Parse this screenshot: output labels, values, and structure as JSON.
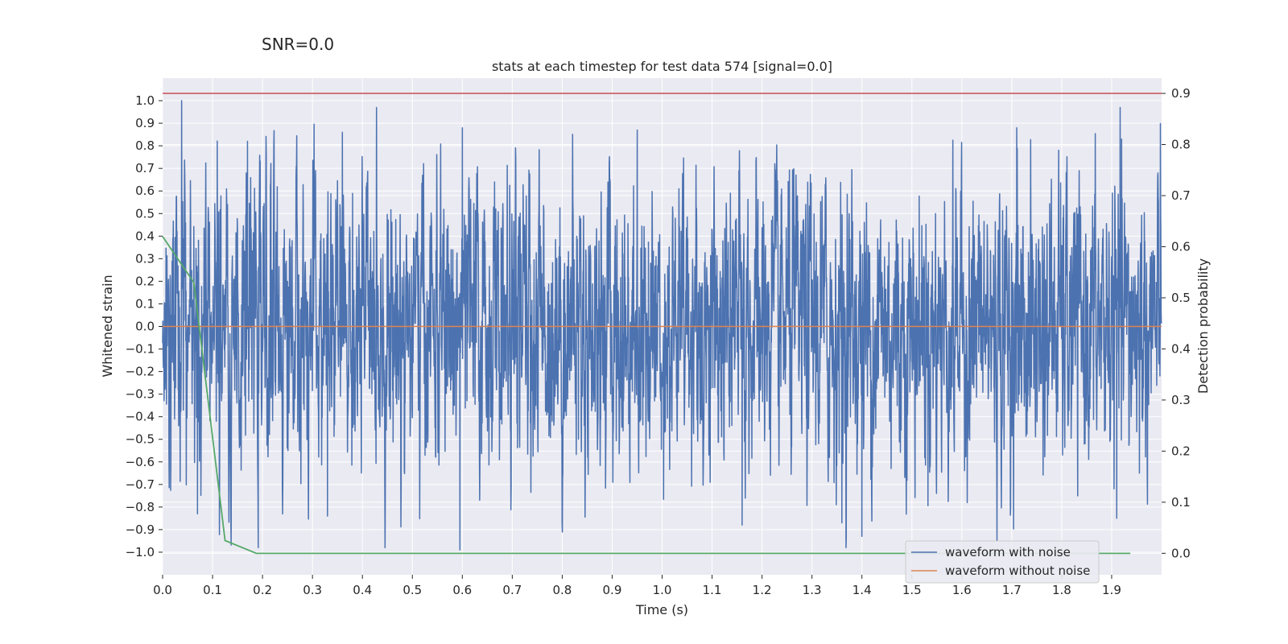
{
  "suptitle": "SNR=0.0",
  "chart_data": {
    "type": "line",
    "title": "stats at each timestep for test data 574 [signal=0.0]",
    "xlabel": "Time (s)",
    "ylabel_left": "Whitened strain",
    "ylabel_right": "Detection probability",
    "xlim": [
      0.0,
      2.0
    ],
    "ylim_left": [
      -1.1,
      1.1
    ],
    "ylim_right": [
      -0.042,
      0.93
    ],
    "x_ticks": [
      "0.0",
      "0.1",
      "0.2",
      "0.3",
      "0.4",
      "0.5",
      "0.6",
      "0.7",
      "0.8",
      "0.9",
      "1.0",
      "1.1",
      "1.2",
      "1.3",
      "1.4",
      "1.5",
      "1.6",
      "1.7",
      "1.8",
      "1.9"
    ],
    "y_ticks_left": [
      "1.0",
      "0.9",
      "0.8",
      "0.7",
      "0.6",
      "0.5",
      "0.4",
      "0.3",
      "0.2",
      "0.1",
      "0.0",
      "−0.1",
      "−0.2",
      "−0.3",
      "−0.4",
      "−0.5",
      "−0.6",
      "−0.7",
      "−0.8",
      "−0.9",
      "−1.0"
    ],
    "y_ticks_right": [
      "0.9",
      "0.8",
      "0.7",
      "0.6",
      "0.5",
      "0.4",
      "0.3",
      "0.2",
      "0.1",
      "0.0"
    ],
    "grid": true,
    "legend_position": "bottom-right",
    "series": [
      {
        "name": "waveform with noise",
        "axis": "left",
        "color": "#4c72b0",
        "sample_rate": 2048,
        "duration": 2.0,
        "amplitude_std": 0.3,
        "peak_points": [
          {
            "x": 0.038,
            "y": 1.0
          },
          {
            "x": 0.595,
            "y": -0.99
          },
          {
            "x": 0.6,
            "y": 0.88
          },
          {
            "x": 1.71,
            "y": 0.88
          },
          {
            "x": 0.95,
            "y": 0.87
          },
          {
            "x": 0.36,
            "y": 0.86
          },
          {
            "x": 1.4,
            "y": -0.93
          },
          {
            "x": 1.91,
            "y": -0.85
          },
          {
            "x": 1.16,
            "y": -0.88
          },
          {
            "x": 0.8,
            "y": -0.87
          },
          {
            "x": 0.33,
            "y": -0.84
          },
          {
            "x": 1.36,
            "y": -0.87
          },
          {
            "x": 0.07,
            "y": -0.83
          },
          {
            "x": 0.17,
            "y": 0.82
          },
          {
            "x": 1.92,
            "y": 0.83
          }
        ]
      },
      {
        "name": "waveform without noise",
        "axis": "left",
        "color": "#dd8452",
        "x": [
          0.0,
          2.0
        ],
        "y": [
          0.0,
          0.0
        ]
      },
      {
        "name": "",
        "axis": "right",
        "color": "#55a868",
        "x": [
          0.0,
          0.0625,
          0.125,
          0.1875,
          0.25,
          0.5,
          1.0,
          1.5,
          1.9375
        ],
        "y": [
          0.62,
          0.53,
          0.025,
          0.0,
          0.0,
          0.0,
          0.0,
          0.0,
          0.0
        ]
      },
      {
        "name": "",
        "axis": "right",
        "color": "#c44e52",
        "x": [
          0.0,
          2.0
        ],
        "y": [
          0.9,
          0.9
        ]
      }
    ]
  }
}
